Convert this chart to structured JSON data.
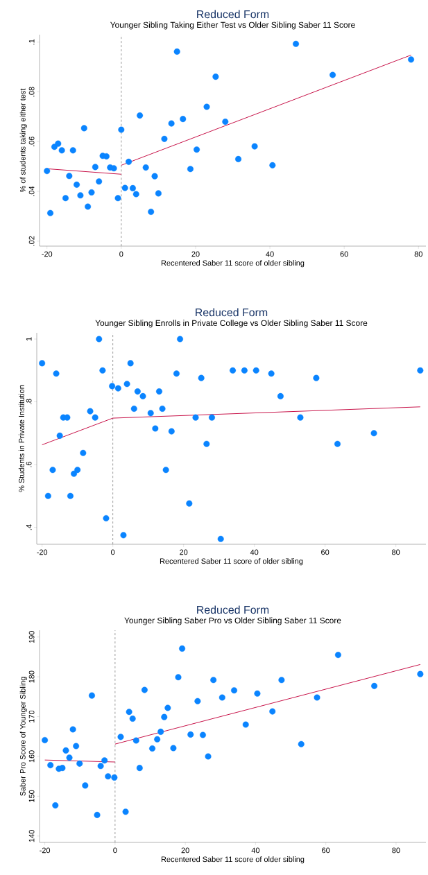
{
  "chart_data": [
    {
      "type": "scatter",
      "title": "Reduced Form",
      "subtitle": "Younger Sibling Taking Either Test vs Older Sibling Saber 11 Score",
      "xlabel": "Recentered Saber 11 score of older sibling",
      "ylabel": "% of students taking either test",
      "marker": "circle",
      "xlim": [
        -22,
        82
      ],
      "ylim": [
        0.018,
        0.103
      ],
      "xticks": [
        -20,
        0,
        20,
        40,
        60,
        80
      ],
      "yticks": [
        {
          "value": 0.02,
          "label": ".02"
        },
        {
          "value": 0.04,
          "label": ".04"
        },
        {
          "value": 0.06,
          "label": ".06"
        },
        {
          "value": 0.08,
          "label": ".08"
        },
        {
          "value": 0.1,
          "label": ".1"
        }
      ],
      "ref_lines": [
        {
          "axis": "x",
          "value": 0,
          "color": "#808080",
          "line_style": "dashed"
        }
      ],
      "series": [
        {
          "color": "#0a84ff",
          "x": [
            -20,
            -19.1,
            -18,
            -17,
            -16,
            -15,
            -14,
            -13,
            -12,
            -11,
            -10,
            -9,
            -8,
            -7,
            -6,
            -5,
            -4,
            -3,
            -2,
            -0.9,
            0,
            1,
            2,
            3.1,
            4,
            5,
            6.6,
            8,
            9,
            10,
            11.6,
            13.5,
            15,
            16.6,
            18.6,
            20.3,
            23,
            25.4,
            28,
            31.5,
            35.9,
            40.7,
            47,
            56.9,
            78
          ],
          "values": [
            0.0482,
            0.0313,
            0.0579,
            0.0592,
            0.0565,
            0.0373,
            0.0462,
            0.0565,
            0.0427,
            0.0384,
            0.0654,
            0.0339,
            0.0396,
            0.0498,
            0.044,
            0.0543,
            0.0541,
            0.0496,
            0.0493,
            0.0373,
            0.0648,
            0.0414,
            0.0519,
            0.0413,
            0.0389,
            0.0705,
            0.0496,
            0.0318,
            0.0461,
            0.0392,
            0.0611,
            0.0673,
            0.0962,
            0.0691,
            0.049,
            0.0568,
            0.074,
            0.0861,
            0.068,
            0.053,
            0.0581,
            0.0505,
            0.0993,
            0.0868,
            0.093
          ]
        },
        {
          "type": "line",
          "marker": "none",
          "color": "#c8144a",
          "x": [
            -20,
            0
          ],
          "values": [
            0.0491,
            0.0469
          ]
        },
        {
          "type": "line",
          "marker": "none",
          "color": "#c8144a",
          "x": [
            0,
            78
          ],
          "values": [
            0.0505,
            0.0948
          ]
        }
      ]
    },
    {
      "type": "scatter",
      "title": "Reduced Form",
      "subtitle": "Younger Sibling Enrolls in Private College vs Older Sibling Saber 11 Score",
      "xlabel": "Recentered Saber 11 score of older sibling",
      "ylabel": "% Students in Private Institution",
      "marker": "circle",
      "xlim": [
        -21.5,
        88.5
      ],
      "ylim": [
        0.346,
        1.02
      ],
      "xticks": [
        -20,
        0,
        20,
        40,
        60,
        80
      ],
      "yticks": [
        {
          "value": 0.4,
          "label": ".4"
        },
        {
          "value": 0.6,
          "label": ".6"
        },
        {
          "value": 0.8,
          "label": ".8"
        },
        1
      ],
      "ref_lines": [
        {
          "axis": "x",
          "value": 0,
          "color": "#808080",
          "line_style": "dashed"
        }
      ],
      "series": [
        {
          "color": "#0a84ff",
          "x": [
            -20,
            -18.3,
            -17,
            -16,
            -15,
            -14,
            -12.9,
            -12,
            -11,
            -10,
            -8.4,
            -6.4,
            -5,
            -3.9,
            -2.9,
            -1.9,
            -0.2,
            1.5,
            3,
            4,
            5,
            6,
            7,
            8.5,
            10.7,
            12,
            13.1,
            14,
            15,
            16.6,
            18,
            19,
            21.6,
            23.4,
            25,
            26.5,
            28,
            30.5,
            33.9,
            37.2,
            40.5,
            44.8,
            47.4,
            53,
            57.5,
            63.5,
            73.8,
            86.9
          ],
          "values": [
            0.923,
            0.5,
            0.583,
            0.89,
            0.692,
            0.75,
            0.75,
            0.5,
            0.571,
            0.583,
            0.637,
            0.77,
            0.75,
            1.0,
            0.9,
            0.429,
            0.85,
            0.843,
            0.375,
            0.857,
            0.923,
            0.778,
            0.833,
            0.818,
            0.764,
            0.715,
            0.833,
            0.778,
            0.583,
            0.706,
            0.89,
            1.0,
            0.476,
            0.75,
            0.876,
            0.666,
            0.75,
            0.363,
            0.9,
            0.9,
            0.9,
            0.89,
            0.818,
            0.75,
            0.876,
            0.666,
            0.7,
            0.9
          ]
        },
        {
          "type": "line",
          "marker": "none",
          "color": "#c8144a",
          "x": [
            -20,
            0,
            86.9
          ],
          "values": [
            0.663,
            0.748,
            0.784
          ]
        }
      ]
    },
    {
      "type": "scatter",
      "title": "Reduced Form",
      "subtitle": "Younger Sibling Saber Pro vs Older Sibling Saber 11 Score",
      "xlabel": "Recentered Saber 11 score of older sibling",
      "ylabel": "Saber Pro Score of Younger Sibling",
      "marker": "circle",
      "xlim": [
        -21.5,
        88.5
      ],
      "ylim": [
        138.4,
        191.7
      ],
      "xticks": [
        -20,
        0,
        20,
        40,
        60,
        80
      ],
      "yticks": [
        140,
        150,
        160,
        170,
        180,
        190
      ],
      "ref_lines": [
        {
          "axis": "x",
          "value": 0,
          "color": "#808080",
          "line_style": "dashed"
        }
      ],
      "series": [
        {
          "color": "#0a84ff",
          "x": [
            -20,
            -18.4,
            -17,
            -16,
            -15,
            -14,
            -13,
            -12,
            -11.1,
            -10.1,
            -8.5,
            -6.6,
            -5.1,
            -4.1,
            -3,
            -2,
            -0.2,
            1.6,
            3,
            4,
            5,
            6,
            7,
            8.4,
            10.6,
            12,
            13,
            14,
            15,
            16.6,
            18,
            19.1,
            21.5,
            23.5,
            25,
            26.5,
            28,
            30.5,
            33.9,
            37.2,
            40.5,
            44.8,
            47.4,
            53,
            57.5,
            63.5,
            73.8,
            86.9
          ],
          "values": [
            164.1,
            157.8,
            147.7,
            156.9,
            157.1,
            161.5,
            159.7,
            166.8,
            162.6,
            158.2,
            152.7,
            175.3,
            145.3,
            157.6,
            159,
            155,
            154.7,
            164.9,
            146.1,
            171.2,
            169.5,
            164,
            157.1,
            176.7,
            162,
            164.3,
            166.2,
            169.9,
            172.2,
            162.1,
            179.9,
            187.1,
            165.5,
            173.9,
            165.4,
            160,
            179.2,
            174.8,
            176.6,
            168,
            175.8,
            171.3,
            179.2,
            163.1,
            174.8,
            185.5,
            177.7,
            180.7
          ]
        },
        {
          "type": "line",
          "marker": "none",
          "color": "#c8144a",
          "x": [
            -20,
            0
          ],
          "values": [
            159.1,
            158.6
          ]
        },
        {
          "type": "line",
          "marker": "none",
          "color": "#c8144a",
          "x": [
            0,
            86.9
          ],
          "values": [
            163.1,
            183.1
          ]
        }
      ]
    }
  ]
}
